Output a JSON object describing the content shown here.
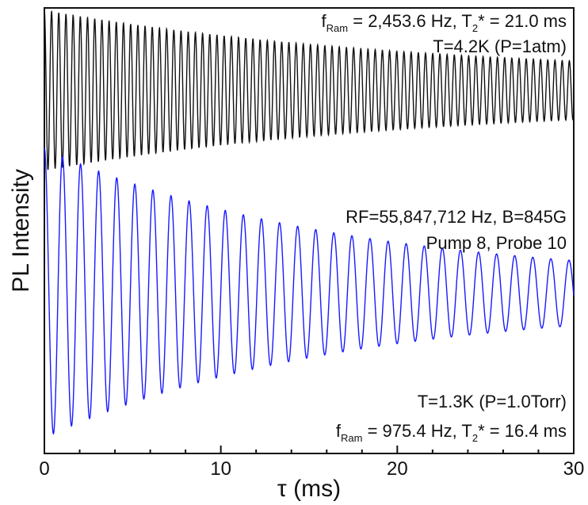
{
  "chart_data": {
    "type": "line",
    "xlabel": "τ (ms)",
    "ylabel": "PL Intensity",
    "xlim": [
      0,
      30
    ],
    "ylim": [
      0,
      1
    ],
    "x_ticks": [
      0,
      10,
      20,
      30
    ],
    "grid": false,
    "legend": "none",
    "annotations": {
      "top_line1": {
        "f": "f",
        "sub1": "Ram",
        "mid": " = 2,453.6 Hz, T",
        "sub2": "2",
        "end": "* = 21.0 ms"
      },
      "top_line2": "T=4.2K (P=1atm)",
      "mid_line1": "RF=55,847,712 Hz, B=845G",
      "mid_line2": "Pump 8, Probe 10",
      "bottom_line1": "T=1.3K (P=1.0Torr)",
      "bottom_line2": {
        "f": "f",
        "sub1": "Ram",
        "mid": " = 975.4 Hz, T",
        "sub2": "2",
        "end": "* = 16.4 ms"
      }
    },
    "series": [
      {
        "color": "#111111",
        "model": {
          "frequency_kHz": 2.4536,
          "T2_star_ms": 21.0,
          "offset": 0.815,
          "amplitude": 0.15,
          "floor": 0.03
        },
        "x_ms": [
          0,
          5,
          10,
          15,
          20,
          25,
          30
        ],
        "envelope_upper": [
          0.965,
          0.953,
          0.937,
          0.921,
          0.901,
          0.885,
          0.869
        ],
        "envelope_lower": [
          0.665,
          0.677,
          0.693,
          0.709,
          0.729,
          0.745,
          0.761
        ]
      },
      {
        "color": "#1a1aff",
        "model": {
          "frequency_kHz": 0.9754,
          "T2_star_ms": 16.4,
          "offset": 0.36,
          "amplitude": 0.3,
          "floor": 0.025
        },
        "x_ms": [
          0,
          5,
          10,
          15,
          20,
          25,
          30
        ],
        "envelope_upper": [
          0.66,
          0.6,
          0.54,
          0.49,
          0.455,
          0.43,
          0.415
        ],
        "envelope_lower": [
          0.06,
          0.12,
          0.18,
          0.23,
          0.265,
          0.29,
          0.305
        ]
      }
    ]
  }
}
